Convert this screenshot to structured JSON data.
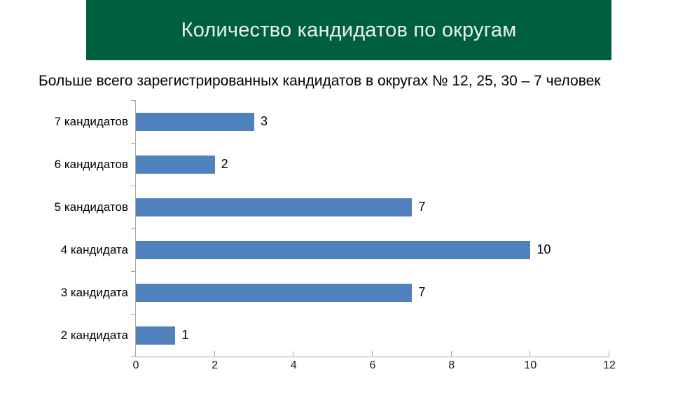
{
  "header": {
    "title": "Количество кандидатов по округам",
    "background_color": "#005f3c",
    "text_color": "#e9f2eb"
  },
  "subtitle": "Больше всего зарегистрированных кандидатов в округах № 12, 25, 30 – 7 человек",
  "chart_data": {
    "type": "bar",
    "orientation": "horizontal",
    "categories": [
      "7 кандидатов",
      "6 кандидатов",
      "5 кандидатов",
      "4 кандидата",
      "3 кандидата",
      "2 кандидата"
    ],
    "values": [
      3,
      2,
      7,
      10,
      7,
      1
    ],
    "data_labels": [
      "3",
      "2",
      "7",
      "10",
      "7",
      "1"
    ],
    "xlim": [
      0,
      12
    ],
    "x_ticks": [
      0,
      2,
      4,
      6,
      8,
      10,
      12
    ],
    "grid": false,
    "legend": "none",
    "bar_color": "#4f81bd",
    "axis_color": "#a6a6a6"
  }
}
